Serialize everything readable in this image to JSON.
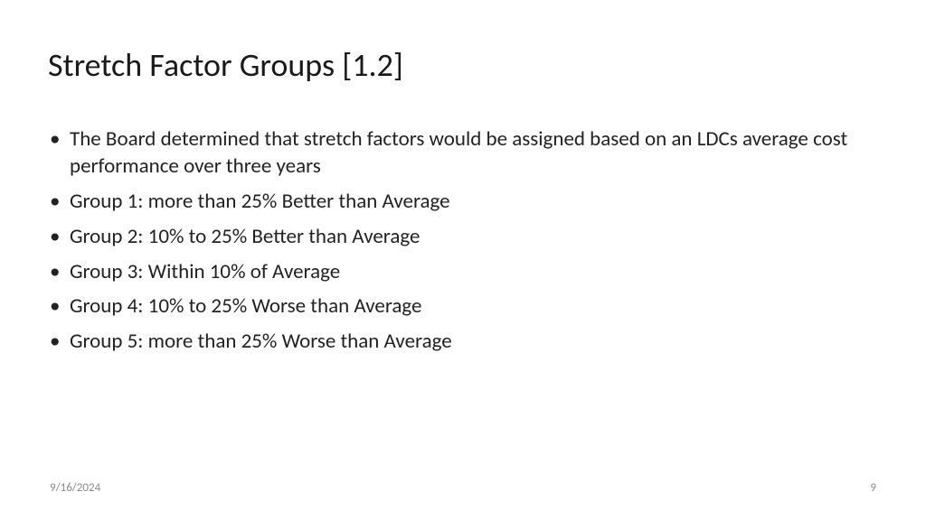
{
  "title": "Stretch Factor Groups [1.2]",
  "bullets": [
    "The Board determined that stretch factors would be assigned based on an LDCs average cost performance over three years",
    "Group 1: more than 25% Better than Average",
    "Group 2: 10% to 25% Better than Average",
    "Group 3: Within 10% of Average",
    "Group 4: 10% to 25% Worse than Average",
    "Group 5: more than 25% Worse than Average"
  ],
  "footer": {
    "date": "9/16/2024",
    "page": "9"
  },
  "style": {
    "title_fontsize": 36,
    "body_fontsize": 23,
    "footer_fontsize": 13,
    "text_color": "#222222",
    "footer_color": "#8a8a8a",
    "background_color": "#ffffff"
  }
}
